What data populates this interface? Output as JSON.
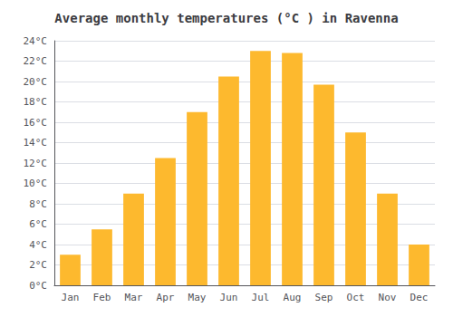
{
  "chart_data": {
    "type": "bar",
    "title": "Average monthly temperatures (°C ) in Ravenna",
    "categories": [
      "Jan",
      "Feb",
      "Mar",
      "Apr",
      "May",
      "Jun",
      "Jul",
      "Aug",
      "Sep",
      "Oct",
      "Nov",
      "Dec"
    ],
    "values": [
      3.0,
      5.5,
      9.0,
      12.5,
      17.0,
      20.5,
      23.0,
      22.8,
      19.7,
      15.0,
      9.0,
      4.0
    ],
    "color": "#FDB92E",
    "ylim": [
      0,
      24
    ],
    "yticks": [
      {
        "value": 0,
        "label": "0°C"
      },
      {
        "value": 2,
        "label": "2°C"
      },
      {
        "value": 4,
        "label": "4°C"
      },
      {
        "value": 6,
        "label": "6°C"
      },
      {
        "value": 8,
        "label": "8°C"
      },
      {
        "value": 10,
        "label": "10°C"
      },
      {
        "value": 12,
        "label": "12°C"
      },
      {
        "value": 14,
        "label": "14°C"
      },
      {
        "value": 16,
        "label": "16°C"
      },
      {
        "value": 18,
        "label": "18°C"
      },
      {
        "value": 20,
        "label": "20°C"
      },
      {
        "value": 22,
        "label": "22°C"
      },
      {
        "value": 24,
        "label": "24°C"
      }
    ],
    "grid": true
  }
}
